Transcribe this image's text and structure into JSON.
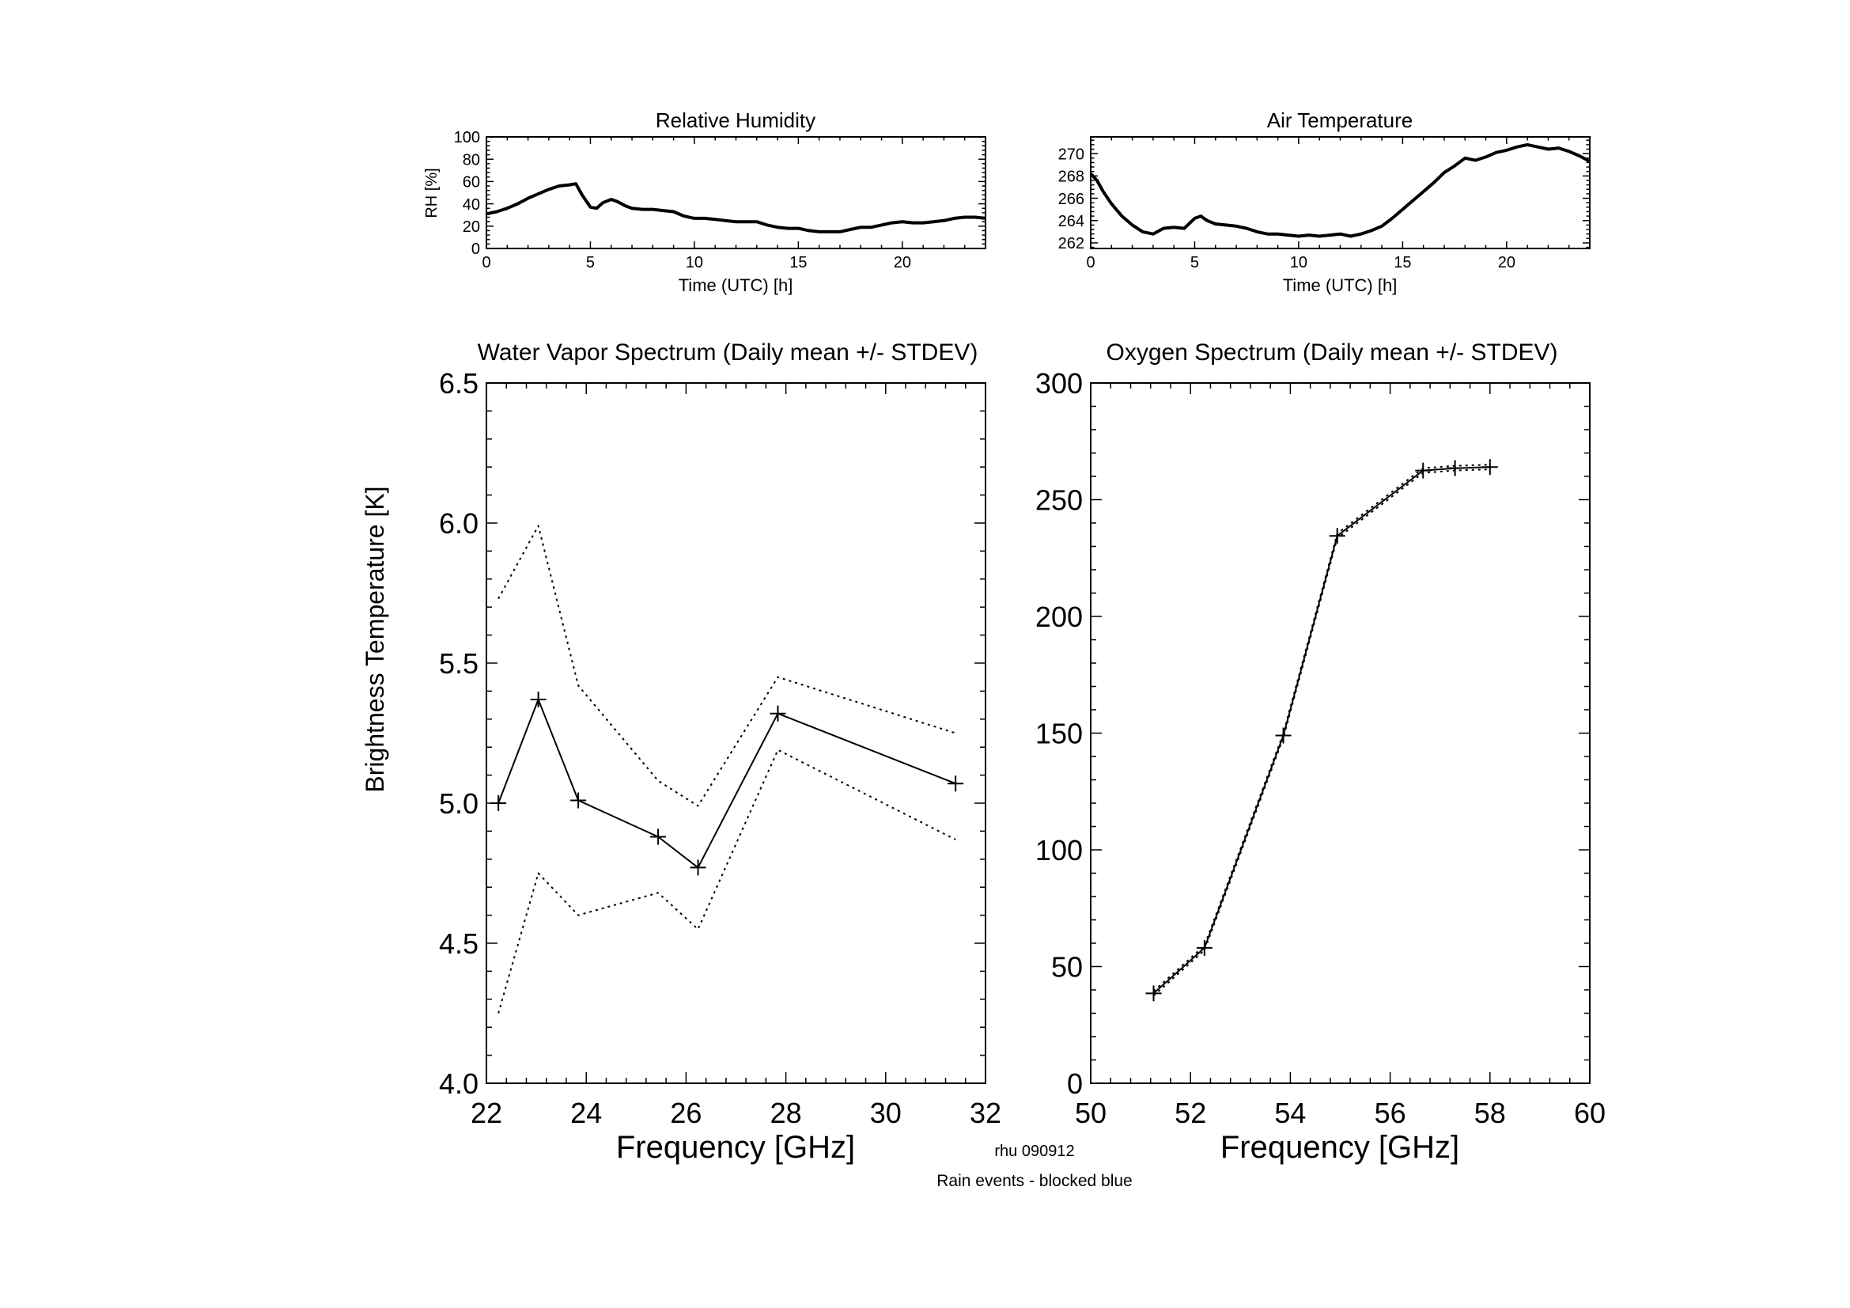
{
  "colors": {
    "ink": "#000000",
    "footer_note": "#00e5ee",
    "background": "#ffffff"
  },
  "footer": {
    "id_label": "rhu 090912",
    "rain_note": "Rain events - blocked blue"
  },
  "chart_data": [
    {
      "id": "rh",
      "type": "line",
      "title": "Relative Humidity",
      "xlabel": "Time (UTC) [h]",
      "ylabel": "RH [%]",
      "xlim": [
        0,
        24
      ],
      "ylim": [
        0,
        100
      ],
      "xticks": [
        0,
        5,
        10,
        15,
        20
      ],
      "xtick_labels": [
        "0",
        "5",
        "10",
        "15",
        "20"
      ],
      "yticks": [
        0,
        20,
        40,
        60,
        80,
        100
      ],
      "ytick_labels": [
        "0",
        "20",
        "40",
        "60",
        "80",
        "100"
      ],
      "series": [
        {
          "style": "solid-thick",
          "x": [
            0,
            0.5,
            1,
            1.5,
            2,
            2.5,
            3,
            3.5,
            4,
            4.3,
            4.6,
            5,
            5.3,
            5.6,
            6,
            6.3,
            6.7,
            7,
            7.5,
            8,
            8.5,
            9,
            9.5,
            10,
            10.5,
            11,
            11.5,
            12,
            12.5,
            13,
            13.5,
            14,
            14.5,
            15,
            15.5,
            16,
            16.5,
            17,
            17.5,
            18,
            18.5,
            19,
            19.5,
            20,
            20.5,
            21,
            21.5,
            22,
            22.5,
            23,
            23.5,
            24
          ],
          "y": [
            31,
            33,
            36,
            40,
            45,
            49,
            53,
            56,
            57,
            58,
            48,
            37,
            36,
            41,
            44,
            42,
            38,
            36,
            35,
            35,
            34,
            33,
            29,
            27,
            27,
            26,
            25,
            24,
            24,
            24,
            21,
            19,
            18,
            18,
            16,
            15,
            15,
            15,
            17,
            19,
            19,
            21,
            23,
            24,
            23,
            23,
            24,
            25,
            27,
            28,
            28,
            27
          ]
        }
      ]
    },
    {
      "id": "airtemp",
      "type": "line",
      "title": "Air Temperature",
      "xlabel": "Time (UTC) [h]",
      "ylabel": "",
      "xlim": [
        0,
        24
      ],
      "ylim": [
        261.5,
        271.5
      ],
      "xticks": [
        0,
        5,
        10,
        15,
        20
      ],
      "xtick_labels": [
        "0",
        "5",
        "10",
        "15",
        "20"
      ],
      "yticks": [
        262,
        264,
        266,
        268,
        270
      ],
      "ytick_labels": [
        "262",
        "264",
        "266",
        "268",
        "270"
      ],
      "series": [
        {
          "style": "solid-thick",
          "x": [
            0,
            0.3,
            0.6,
            1,
            1.5,
            2,
            2.5,
            3,
            3.5,
            4,
            4.5,
            5,
            5.3,
            5.6,
            6,
            6.5,
            7,
            7.5,
            8,
            8.5,
            9,
            9.5,
            10,
            10.5,
            11,
            11.5,
            12,
            12.5,
            13,
            13.5,
            14,
            14.5,
            15,
            15.5,
            16,
            16.5,
            17,
            17.5,
            18,
            18.5,
            19,
            19.5,
            20,
            20.5,
            21,
            21.5,
            22,
            22.5,
            23,
            23.5,
            24
          ],
          "y": [
            268.2,
            267.6,
            266.6,
            265.5,
            264.4,
            263.6,
            263.0,
            262.8,
            263.3,
            263.4,
            263.3,
            264.2,
            264.4,
            264.0,
            263.7,
            263.6,
            263.5,
            263.3,
            263.0,
            262.8,
            262.8,
            262.7,
            262.6,
            262.7,
            262.6,
            262.7,
            262.8,
            262.6,
            262.8,
            263.1,
            263.5,
            264.2,
            265.0,
            265.8,
            266.6,
            267.4,
            268.3,
            268.9,
            269.6,
            269.4,
            269.7,
            270.1,
            270.3,
            270.6,
            270.8,
            270.6,
            270.4,
            270.5,
            270.2,
            269.8,
            269.3
          ]
        }
      ]
    },
    {
      "id": "wv",
      "type": "line",
      "title": "Water Vapor Spectrum (Daily mean +/- STDEV)",
      "xlabel": "Frequency [GHz]",
      "ylabel": "Brightness Temperature [K]",
      "xlim": [
        22,
        32
      ],
      "ylim": [
        4.0,
        6.5
      ],
      "xticks": [
        22,
        24,
        26,
        28,
        30,
        32
      ],
      "xtick_labels": [
        "22",
        "24",
        "26",
        "28",
        "30",
        "32"
      ],
      "yticks": [
        4.0,
        4.5,
        5.0,
        5.5,
        6.0,
        6.5
      ],
      "ytick_labels": [
        "4.0",
        "4.5",
        "5.0",
        "5.5",
        "6.0",
        "6.5"
      ],
      "series": [
        {
          "style": "solid-plus",
          "x": [
            22.24,
            23.04,
            23.84,
            25.44,
            26.24,
            27.84,
            31.4
          ],
          "y": [
            5.0,
            5.37,
            5.01,
            4.88,
            4.77,
            5.32,
            5.07
          ]
        },
        {
          "style": "dotted",
          "x": [
            22.24,
            23.04,
            23.84,
            25.44,
            26.24,
            27.84,
            31.4
          ],
          "y": [
            5.73,
            5.99,
            5.42,
            5.08,
            4.99,
            5.45,
            5.25
          ]
        },
        {
          "style": "dotted",
          "x": [
            22.24,
            23.04,
            23.84,
            25.44,
            26.24,
            27.84,
            31.4
          ],
          "y": [
            4.25,
            4.75,
            4.6,
            4.68,
            4.55,
            5.19,
            4.87
          ]
        }
      ]
    },
    {
      "id": "o2",
      "type": "line",
      "title": "Oxygen Spectrum (Daily mean +/- STDEV)",
      "xlabel": "Frequency [GHz]",
      "ylabel": "",
      "xlim": [
        50,
        60
      ],
      "ylim": [
        0,
        300
      ],
      "xticks": [
        50,
        52,
        54,
        56,
        58,
        60
      ],
      "xtick_labels": [
        "50",
        "52",
        "54",
        "56",
        "58",
        "60"
      ],
      "yticks": [
        0,
        50,
        100,
        150,
        200,
        250,
        300
      ],
      "ytick_labels": [
        "0",
        "50",
        "100",
        "150",
        "200",
        "250",
        "300"
      ],
      "series": [
        {
          "style": "solid-plus",
          "x": [
            51.26,
            52.28,
            53.86,
            54.94,
            56.66,
            57.3,
            58.0
          ],
          "y": [
            38.5,
            58.0,
            149.0,
            234.5,
            262.5,
            263.5,
            264.0
          ]
        },
        {
          "style": "dotted",
          "x": [
            51.26,
            52.28,
            53.86,
            54.94,
            56.66,
            57.3,
            58.0
          ],
          "y": [
            39.5,
            59.0,
            150.0,
            235.5,
            263.5,
            264.5,
            265.0
          ]
        },
        {
          "style": "dotted",
          "x": [
            51.26,
            52.28,
            53.86,
            54.94,
            56.66,
            57.3,
            58.0
          ],
          "y": [
            37.5,
            57.0,
            148.0,
            233.5,
            261.5,
            262.5,
            263.0
          ]
        }
      ]
    }
  ]
}
